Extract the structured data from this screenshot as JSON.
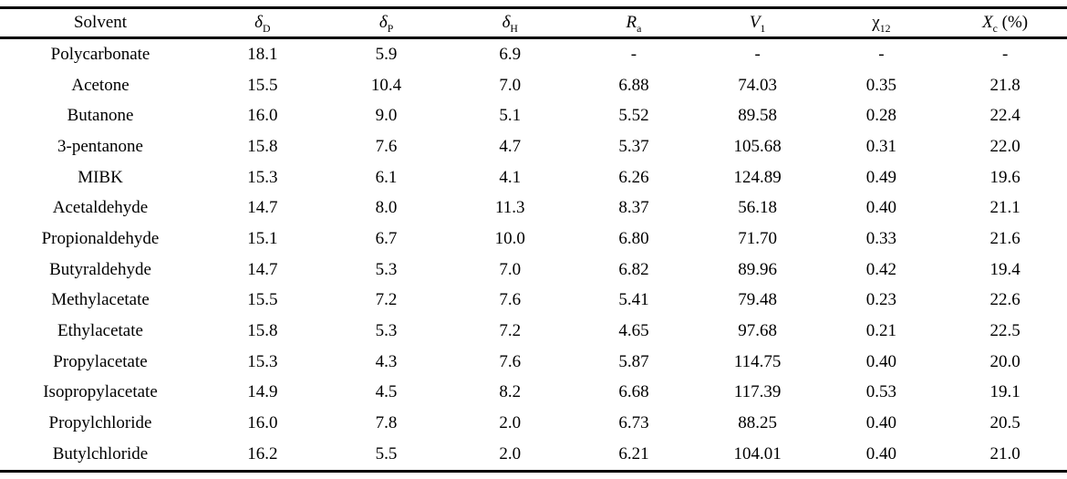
{
  "chart_data": {
    "type": "table",
    "columns": [
      {
        "name": "solvent",
        "label": "Solvent",
        "sub": "",
        "suffix": "",
        "italic": false
      },
      {
        "name": "delta-d",
        "label": "δ",
        "sub": "D",
        "suffix": "",
        "italic": true
      },
      {
        "name": "delta-p",
        "label": "δ",
        "sub": "P",
        "suffix": "",
        "italic": true
      },
      {
        "name": "delta-h",
        "label": "δ",
        "sub": "H",
        "suffix": "",
        "italic": true
      },
      {
        "name": "ra",
        "label": "R",
        "sub": "a",
        "suffix": "",
        "italic": true
      },
      {
        "name": "v1",
        "label": "V",
        "sub": "1",
        "suffix": "",
        "italic": true
      },
      {
        "name": "chi12",
        "label": "χ",
        "sub": "12",
        "suffix": "",
        "italic": false
      },
      {
        "name": "xc-percent",
        "label": "X",
        "sub": "c",
        "suffix": " (%)",
        "italic": true
      }
    ],
    "rows": [
      [
        "Polycarbonate",
        "18.1",
        "5.9",
        "6.9",
        "-",
        "-",
        "-",
        "-"
      ],
      [
        "Acetone",
        "15.5",
        "10.4",
        "7.0",
        "6.88",
        "74.03",
        "0.35",
        "21.8"
      ],
      [
        "Butanone",
        "16.0",
        "9.0",
        "5.1",
        "5.52",
        "89.58",
        "0.28",
        "22.4"
      ],
      [
        "3-pentanone",
        "15.8",
        "7.6",
        "4.7",
        "5.37",
        "105.68",
        "0.31",
        "22.0"
      ],
      [
        "MIBK",
        "15.3",
        "6.1",
        "4.1",
        "6.26",
        "124.89",
        "0.49",
        "19.6"
      ],
      [
        "Acetaldehyde",
        "14.7",
        "8.0",
        "11.3",
        "8.37",
        "56.18",
        "0.40",
        "21.1"
      ],
      [
        "Propionaldehyde",
        "15.1",
        "6.7",
        "10.0",
        "6.80",
        "71.70",
        "0.33",
        "21.6"
      ],
      [
        "Butyraldehyde",
        "14.7",
        "5.3",
        "7.0",
        "6.82",
        "89.96",
        "0.42",
        "19.4"
      ],
      [
        "Methylacetate",
        "15.5",
        "7.2",
        "7.6",
        "5.41",
        "79.48",
        "0.23",
        "22.6"
      ],
      [
        "Ethylacetate",
        "15.8",
        "5.3",
        "7.2",
        "4.65",
        "97.68",
        "0.21",
        "22.5"
      ],
      [
        "Propylacetate",
        "15.3",
        "4.3",
        "7.6",
        "5.87",
        "114.75",
        "0.40",
        "20.0"
      ],
      [
        "Isopropylacetate",
        "14.9",
        "4.5",
        "8.2",
        "6.68",
        "117.39",
        "0.53",
        "19.1"
      ],
      [
        "Propylchloride",
        "16.0",
        "7.8",
        "2.0",
        "6.73",
        "88.25",
        "0.40",
        "20.5"
      ],
      [
        "Butylchloride",
        "16.2",
        "5.5",
        "2.0",
        "6.21",
        "104.01",
        "0.40",
        "21.0"
      ]
    ]
  }
}
